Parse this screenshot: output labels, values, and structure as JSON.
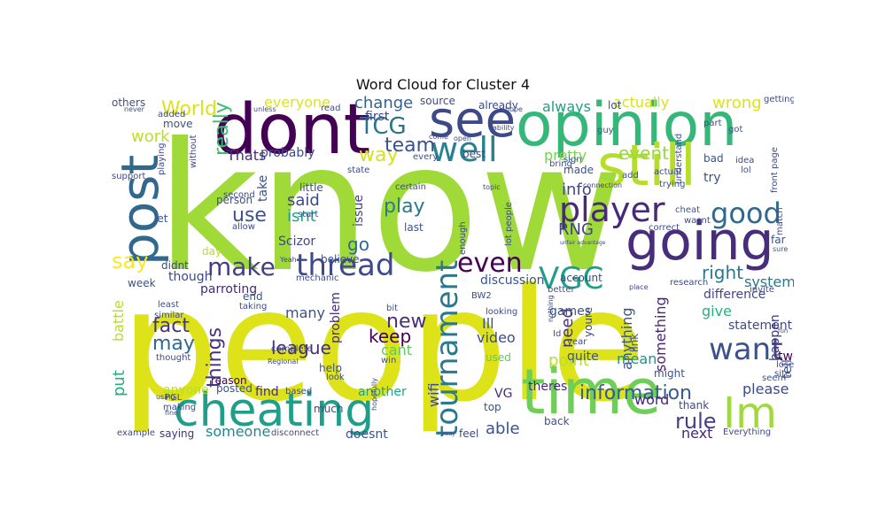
{
  "chart_data": {
    "type": "wordcloud",
    "title": "Word Cloud for Cluster 4",
    "words": [
      {
        "text": "know",
        "c": "#a0da39"
      },
      {
        "text": "people",
        "c": "#dde318"
      },
      {
        "text": "dont",
        "c": "#440154"
      },
      {
        "text": "opinion",
        "c": "#35b779"
      },
      {
        "text": "post",
        "c": "#31688e"
      },
      {
        "text": "see",
        "c": "#3e4989"
      },
      {
        "text": "still",
        "c": "#b5de2b"
      },
      {
        "text": "time",
        "c": "#6ece58"
      },
      {
        "text": "cheating",
        "c": "#1f9e89"
      },
      {
        "text": "going",
        "c": "#472d7b"
      },
      {
        "text": "well",
        "c": "#26828e"
      },
      {
        "text": "player",
        "c": "#482878"
      },
      {
        "text": "Im",
        "c": "#a0da39"
      },
      {
        "text": "good",
        "c": "#31688e"
      },
      {
        "text": "thread",
        "c": "#3e4989"
      },
      {
        "text": "make",
        "c": "#433e85"
      },
      {
        "text": "tournament",
        "c": "#2a788e"
      },
      {
        "text": "want",
        "c": "#3b528b"
      },
      {
        "text": "VGC",
        "c": "#1f9e89"
      },
      {
        "text": "even",
        "c": "#440154"
      },
      {
        "text": "say",
        "c": "#fde725"
      },
      {
        "text": "information",
        "c": "#365c8d"
      },
      {
        "text": "TCG",
        "c": "#2c728e"
      },
      {
        "text": "play",
        "c": "#2a788e"
      },
      {
        "text": "way",
        "c": "#d8e219"
      },
      {
        "text": "team",
        "c": "#3b528b"
      },
      {
        "text": "RNG",
        "c": "#414487"
      },
      {
        "text": "rule",
        "c": "#433e85"
      },
      {
        "text": "right",
        "c": "#2a788e"
      },
      {
        "text": "fact",
        "c": "#46337e"
      },
      {
        "text": "may",
        "c": "#31688e"
      },
      {
        "text": "league",
        "c": "#472d7b"
      },
      {
        "text": "things",
        "c": "#46327e"
      },
      {
        "text": "World",
        "c": "#dde318"
      },
      {
        "text": "really",
        "c": "#3fbc73"
      },
      {
        "text": "use",
        "c": "#3b528b"
      },
      {
        "text": "said",
        "c": "#3e4989"
      },
      {
        "text": "isnt",
        "c": "#20a386"
      },
      {
        "text": "go",
        "c": "#31688e"
      },
      {
        "text": "new",
        "c": "#472d7b"
      },
      {
        "text": "keep",
        "c": "#440154"
      },
      {
        "text": "event",
        "c": "#98d83e"
      },
      {
        "text": "info",
        "c": "#3e4a89"
      },
      {
        "text": "point",
        "c": "#b8de29"
      },
      {
        "text": "everyone",
        "c": "#dde318"
      },
      {
        "text": "change",
        "c": "#33638d"
      },
      {
        "text": "work",
        "c": "#bddf26"
      },
      {
        "text": "battle",
        "c": "#b5de2b"
      },
      {
        "text": "put",
        "c": "#25ab82"
      },
      {
        "text": "someone",
        "c": "#24868e"
      },
      {
        "text": "able",
        "c": "#3b528b"
      },
      {
        "text": "next",
        "c": "#482878"
      },
      {
        "text": "please",
        "c": "#3e4989"
      },
      {
        "text": "give",
        "c": "#29af7f"
      },
      {
        "text": "something",
        "c": "#482475"
      },
      {
        "text": "anything",
        "c": "#3b528b"
      },
      {
        "text": "need",
        "c": "#46327e"
      },
      {
        "text": "mean",
        "c": "#21918c"
      },
      {
        "text": "video",
        "c": "#3e4989"
      },
      {
        "text": "Ill",
        "c": "#3b528b"
      },
      {
        "text": "cant",
        "c": "#5ec962"
      },
      {
        "text": "Thats",
        "c": "#472d7b"
      },
      {
        "text": "wrong",
        "c": "#dde318"
      },
      {
        "text": "actually",
        "c": "#d8e219"
      },
      {
        "text": "always",
        "c": "#1f9e89"
      },
      {
        "text": "pretty",
        "c": "#7ad151"
      },
      {
        "text": "quite",
        "c": "#3b528b"
      },
      {
        "text": "word",
        "c": "#482878"
      },
      {
        "text": "tell",
        "c": "#3b528b"
      },
      {
        "text": "happen",
        "c": "#46327e"
      },
      {
        "text": "two",
        "c": "#440154"
      },
      {
        "text": "system",
        "c": "#2a788e"
      },
      {
        "text": "difference",
        "c": "#414487"
      },
      {
        "text": "statement",
        "c": "#3e4989"
      },
      {
        "text": "discussion",
        "c": "#3b528b"
      },
      {
        "text": "games",
        "c": "#3b528b"
      },
      {
        "text": "problem",
        "c": "#472d7b"
      },
      {
        "text": "many",
        "c": "#3b528b"
      },
      {
        "text": "though",
        "c": "#3e4989"
      },
      {
        "text": "parroting",
        "c": "#482878"
      },
      {
        "text": "week",
        "c": "#3b528b"
      },
      {
        "text": "day",
        "c": "#b8de29"
      },
      {
        "text": "take",
        "c": "#3b528b"
      },
      {
        "text": "probably",
        "c": "#3e4989"
      },
      {
        "text": "person",
        "c": "#3b528b"
      },
      {
        "text": "first",
        "c": "#3e4989"
      },
      {
        "text": "issue",
        "c": "#433e85"
      },
      {
        "text": "wifi",
        "c": "#3e4989"
      },
      {
        "text": "another",
        "c": "#20a386"
      },
      {
        "text": "doesnt",
        "c": "#3b528b"
      },
      {
        "text": "find",
        "c": "#472d7b"
      },
      {
        "text": "much",
        "c": "#3e4989"
      },
      {
        "text": "reason",
        "c": "#440154"
      },
      {
        "text": "anyone",
        "c": "#b5de2b"
      },
      {
        "text": "saying",
        "c": "#46327e"
      },
      {
        "text": "example",
        "c": "#3e4989"
      },
      {
        "text": "help",
        "c": "#3b528b"
      },
      {
        "text": "theres",
        "c": "#482878"
      },
      {
        "text": "top",
        "c": "#3b528b"
      },
      {
        "text": "VG",
        "c": "#472d7b"
      },
      {
        "text": "feel",
        "c": "#3e4989"
      },
      {
        "text": "back",
        "c": "#3b528b"
      },
      {
        "text": "thank",
        "c": "#3e4989"
      },
      {
        "text": "might",
        "c": "#3b528b"
      },
      {
        "text": "made",
        "c": "#3b528b"
      },
      {
        "text": "bad",
        "c": "#3b528b"
      },
      {
        "text": "try",
        "c": "#3b528b"
      },
      {
        "text": "used",
        "c": "#5ec962"
      },
      {
        "text": "last",
        "c": "#3b528b"
      },
      {
        "text": "little",
        "c": "#3e4989"
      },
      {
        "text": "believe",
        "c": "#3e4989"
      },
      {
        "text": "Scizor",
        "c": "#3e4989"
      },
      {
        "text": "start",
        "c": "#3b528b"
      },
      {
        "text": "end",
        "c": "#3b528b"
      },
      {
        "text": "posted",
        "c": "#3b528b"
      },
      {
        "text": "source",
        "c": "#3e4989"
      },
      {
        "text": "lot",
        "c": "#3b528b"
      },
      {
        "text": "already",
        "c": "#3e4989"
      },
      {
        "text": "account",
        "c": "#3e4989"
      },
      {
        "text": "best",
        "c": "#3e4989"
      },
      {
        "text": "enough",
        "c": "#3e4989"
      },
      {
        "text": "others",
        "c": "#3b528b"
      },
      {
        "text": "added",
        "c": "#3e4989"
      },
      {
        "text": "move",
        "c": "#3b528b"
      },
      {
        "text": "support",
        "c": "#3e4989"
      },
      {
        "text": "let",
        "c": "#3b528b"
      },
      {
        "text": "didnt",
        "c": "#3e4989"
      },
      {
        "text": "least",
        "c": "#3b528b"
      },
      {
        "text": "similar",
        "c": "#3e4989"
      },
      {
        "text": "thought",
        "c": "#3e4989"
      },
      {
        "text": "youre",
        "c": "#3e4989"
      },
      {
        "text": "link",
        "c": "#3b528b"
      },
      {
        "text": "year",
        "c": "#3e4989"
      },
      {
        "text": "better",
        "c": "#3b528b"
      },
      {
        "text": "research",
        "c": "#3e4989"
      },
      {
        "text": "invite",
        "c": "#3e4989"
      },
      {
        "text": "far",
        "c": "#3b528b"
      },
      {
        "text": "correct",
        "c": "#3e4989"
      },
      {
        "text": "lol",
        "c": "#3b528b"
      },
      {
        "text": "got",
        "c": "#3b528b"
      },
      {
        "text": "idea",
        "c": "#3e4989"
      },
      {
        "text": "match",
        "c": "#3e4989"
      },
      {
        "text": "getting",
        "c": "#3e4989"
      },
      {
        "text": "Everything",
        "c": "#3e4989"
      },
      {
        "text": "disconnect",
        "c": "#3e4989"
      },
      {
        "text": "win",
        "c": "#3b528b"
      },
      {
        "text": "bit",
        "c": "#3b528b"
      },
      {
        "text": "looking",
        "c": "#3e4989"
      },
      {
        "text": "seem",
        "c": "#3b528b"
      },
      {
        "text": "lose",
        "c": "#3e4989"
      },
      {
        "text": "site",
        "c": "#3e4989"
      },
      {
        "text": "guy",
        "c": "#3b528b"
      },
      {
        "text": "understand",
        "c": "#3e4989"
      },
      {
        "text": "part",
        "c": "#3e4989"
      },
      {
        "text": "front page",
        "c": "#3e4989"
      },
      {
        "text": "Id",
        "c": "#3b528b"
      },
      {
        "text": "lot people",
        "c": "#3e4989"
      },
      {
        "text": "allow",
        "c": "#3e4989"
      },
      {
        "text": "second",
        "c": "#3e4989"
      },
      {
        "text": "cheat",
        "c": "#3b528b"
      },
      {
        "text": "actual",
        "c": "#3e4989"
      },
      {
        "text": "trying",
        "c": "#3b528b"
      },
      {
        "text": "wasnt",
        "c": "#3e4989"
      },
      {
        "text": "read",
        "c": "#3b528b"
      },
      {
        "text": "complete",
        "c": "#3e4989"
      },
      {
        "text": "never",
        "c": "#3b528b"
      },
      {
        "text": "every",
        "c": "#3b528b"
      },
      {
        "text": "mechanic",
        "c": "#3e4989"
      },
      {
        "text": "taking",
        "c": "#3e4989"
      },
      {
        "text": "playing",
        "c": "#3e4989"
      },
      {
        "text": "without",
        "c": "#3e4989"
      },
      {
        "text": "making",
        "c": "#3e4989"
      },
      {
        "text": "based",
        "c": "#3e4989"
      },
      {
        "text": "connection",
        "c": "#3e4989"
      },
      {
        "text": "sign",
        "c": "#3b528b"
      },
      {
        "text": "bring",
        "c": "#3e4989"
      },
      {
        "text": "add",
        "c": "#3b528b"
      },
      {
        "text": "certain",
        "c": "#3e4989"
      },
      {
        "text": "state",
        "c": "#3e4989"
      },
      {
        "text": "come",
        "c": "#3e4989"
      },
      {
        "text": "open",
        "c": "#3e4989"
      },
      {
        "text": "Regional",
        "c": "#3e4989"
      },
      {
        "text": "PGL",
        "c": "#3e4989"
      },
      {
        "text": "using",
        "c": "#3e4989"
      },
      {
        "text": "fine",
        "c": "#3b528b"
      },
      {
        "text": "Yeah",
        "c": "#3e4989"
      },
      {
        "text": "look",
        "c": "#3b528b"
      },
      {
        "text": "unless",
        "c": "#3e4989"
      },
      {
        "text": "ability",
        "c": "#3e4989"
      },
      {
        "text": "hope",
        "c": "#3b528b"
      },
      {
        "text": "topic",
        "c": "#3e4989"
      },
      {
        "text": "BW2",
        "c": "#3e4989"
      },
      {
        "text": "nothing",
        "c": "#3e4989"
      },
      {
        "text": "unfair advantage",
        "c": "#3e4989"
      },
      {
        "text": "place",
        "c": "#3e4989"
      },
      {
        "text": "sure",
        "c": "#3b528b"
      },
      {
        "text": "hopefully",
        "c": "#3e4989"
      },
      {
        "text": "away",
        "c": "#3e4989"
      },
      {
        "text": "fun",
        "c": "#3b528b"
      }
    ]
  }
}
